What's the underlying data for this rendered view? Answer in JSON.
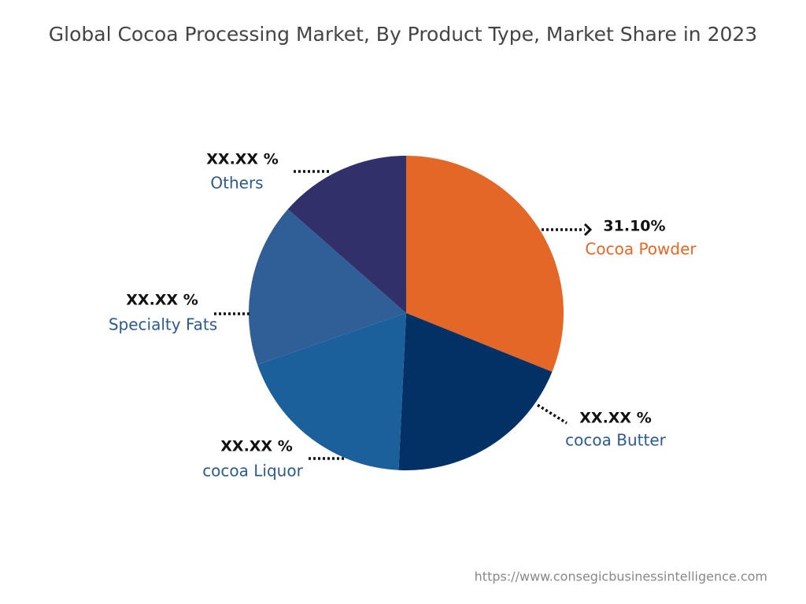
{
  "chart_data": {
    "type": "pie",
    "title": "Global Cocoa Processing Market, By Product Type, Market Share in 2023",
    "categories": [
      "Cocoa Powder",
      "cocoa Butter",
      "cocoa Liquor",
      "Specialty Fats",
      "Others"
    ],
    "values": [
      31.1,
      19.66,
      18.92,
      16.79,
      13.53
    ],
    "value_labels": [
      "31.10%",
      "XX.XX %",
      "XX.XX %",
      "XX.XX %",
      "XX.XX %"
    ],
    "colors": [
      "#e36726",
      "#043165",
      "#1b609a",
      "#305e96",
      "#31306a"
    ],
    "label_colors": [
      "#e36726",
      "#2c5a8c",
      "#2c5a8c",
      "#2c5a8c",
      "#2c5a8c"
    ],
    "source": "https://www.consegicbusinessintelligence.com"
  }
}
